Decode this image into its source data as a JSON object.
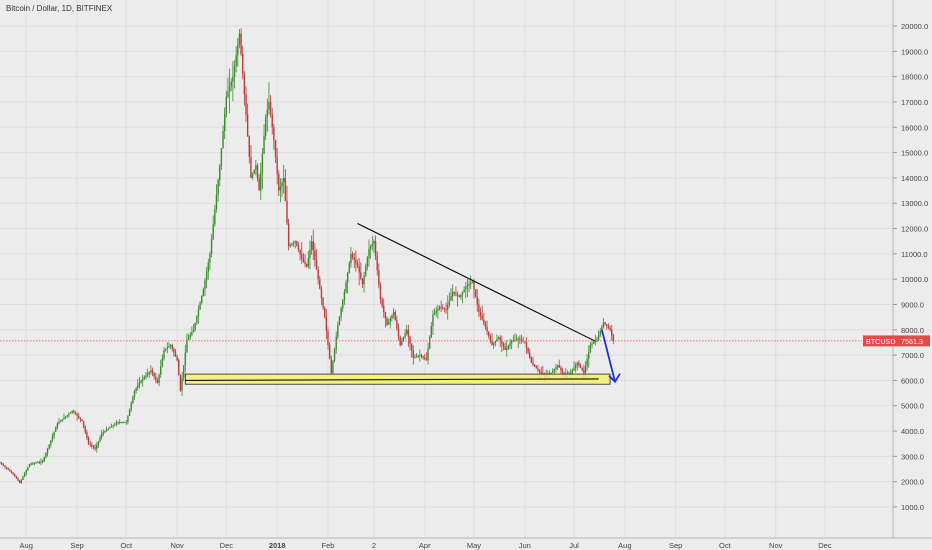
{
  "chart_data": {
    "type": "candlestick",
    "title": "Bitcoin / Dollar, 1D, BITFINEX",
    "symbol": "BTCUSD",
    "last_price": "7561.3",
    "y_axis": {
      "min": 1000,
      "max": 20000,
      "ticks": [
        "1000.0",
        "2000.0",
        "3000.0",
        "4000.0",
        "5000.0",
        "6000.0",
        "7000.0",
        "8000.0",
        "9000.0",
        "10000.0",
        "11000.0",
        "12000.0",
        "13000.0",
        "14000.0",
        "15000.0",
        "16000.0",
        "17000.0",
        "18000.0",
        "19000.0",
        "20000.0"
      ]
    },
    "x_axis": {
      "ticks": [
        {
          "label": "Aug",
          "t": 16
        },
        {
          "label": "Sep",
          "t": 47
        },
        {
          "label": "Oct",
          "t": 77
        },
        {
          "label": "Nov",
          "t": 108
        },
        {
          "label": "Dec",
          "t": 138
        },
        {
          "label": "2018",
          "t": 169
        },
        {
          "label": "Feb",
          "t": 200
        },
        {
          "label": "2",
          "t": 228
        },
        {
          "label": "Apr",
          "t": 259
        },
        {
          "label": "May",
          "t": 289
        },
        {
          "label": "Jun",
          "t": 320
        },
        {
          "label": "Jul",
          "t": 350
        },
        {
          "label": "Aug",
          "t": 381
        },
        {
          "label": "Sep",
          "t": 412
        },
        {
          "label": "Oct",
          "t": 442
        },
        {
          "label": "Nov",
          "t": 473
        },
        {
          "label": "Dec",
          "t": 503
        }
      ]
    },
    "price_path": [
      [
        0,
        2750
      ],
      [
        8,
        2300
      ],
      [
        12,
        1950
      ],
      [
        18,
        2700
      ],
      [
        26,
        2800
      ],
      [
        35,
        4300
      ],
      [
        44,
        4800
      ],
      [
        50,
        4400
      ],
      [
        54,
        3500
      ],
      [
        58,
        3300
      ],
      [
        62,
        3900
      ],
      [
        66,
        4100
      ],
      [
        72,
        4350
      ],
      [
        77,
        4350
      ],
      [
        82,
        5600
      ],
      [
        86,
        6000
      ],
      [
        92,
        6400
      ],
      [
        96,
        5900
      ],
      [
        100,
        7200
      ],
      [
        104,
        7400
      ],
      [
        108,
        6800
      ],
      [
        110,
        5600
      ],
      [
        114,
        7600
      ],
      [
        118,
        8000
      ],
      [
        124,
        9600
      ],
      [
        128,
        11000
      ],
      [
        134,
        14500
      ],
      [
        138,
        17200
      ],
      [
        142,
        18000
      ],
      [
        146,
        19700
      ],
      [
        150,
        16500
      ],
      [
        153,
        14000
      ],
      [
        156,
        14500
      ],
      [
        158,
        13500
      ],
      [
        162,
        16400
      ],
      [
        164,
        17000
      ],
      [
        167,
        15500
      ],
      [
        170,
        13500
      ],
      [
        173,
        14000
      ],
      [
        176,
        11300
      ],
      [
        180,
        11500
      ],
      [
        184,
        10800
      ],
      [
        187,
        10500
      ],
      [
        190,
        11500
      ],
      [
        194,
        10000
      ],
      [
        198,
        8500
      ],
      [
        202,
        6300
      ],
      [
        206,
        8200
      ],
      [
        210,
        9500
      ],
      [
        214,
        11000
      ],
      [
        218,
        10500
      ],
      [
        221,
        9800
      ],
      [
        225,
        11200
      ],
      [
        228,
        11500
      ],
      [
        232,
        9200
      ],
      [
        236,
        8200
      ],
      [
        240,
        8700
      ],
      [
        244,
        7400
      ],
      [
        248,
        8000
      ],
      [
        252,
        6900
      ],
      [
        256,
        7000
      ],
      [
        260,
        6800
      ],
      [
        264,
        8600
      ],
      [
        268,
        8900
      ],
      [
        272,
        8800
      ],
      [
        276,
        9500
      ],
      [
        280,
        9300
      ],
      [
        284,
        9700
      ],
      [
        288,
        9900
      ],
      [
        292,
        8700
      ],
      [
        296,
        8100
      ],
      [
        300,
        7400
      ],
      [
        304,
        7700
      ],
      [
        308,
        7200
      ],
      [
        312,
        7550
      ],
      [
        316,
        7650
      ],
      [
        320,
        7500
      ],
      [
        324,
        6700
      ],
      [
        328,
        6400
      ],
      [
        332,
        6200
      ],
      [
        336,
        6300
      ],
      [
        340,
        6600
      ],
      [
        344,
        6200
      ],
      [
        348,
        6300
      ],
      [
        352,
        6700
      ],
      [
        356,
        6300
      ],
      [
        360,
        7400
      ],
      [
        364,
        7600
      ],
      [
        368,
        8300
      ],
      [
        372,
        8000
      ],
      [
        374,
        7561
      ]
    ],
    "annotations": [
      {
        "type": "trendline",
        "points": [
          [
            218,
            12200
          ],
          [
            363,
            7550
          ]
        ]
      },
      {
        "type": "support_zone",
        "x": [
          113,
          372
        ],
        "y": [
          5850,
          6250
        ]
      },
      {
        "type": "support_line",
        "points": [
          [
            113,
            6000
          ],
          [
            365,
            6060
          ]
        ]
      },
      {
        "type": "arrow",
        "from": [
          367,
          8000
        ],
        "to": [
          375,
          5950
        ]
      }
    ],
    "price_line": 7561.3,
    "grid": true,
    "colors": {
      "up": "#3a8a2e",
      "down": "#b83a3a",
      "trendline": "#000000",
      "zone": "#f4f06e",
      "arrow": "#1f2fd8",
      "price_label": "#e34a4a"
    }
  }
}
